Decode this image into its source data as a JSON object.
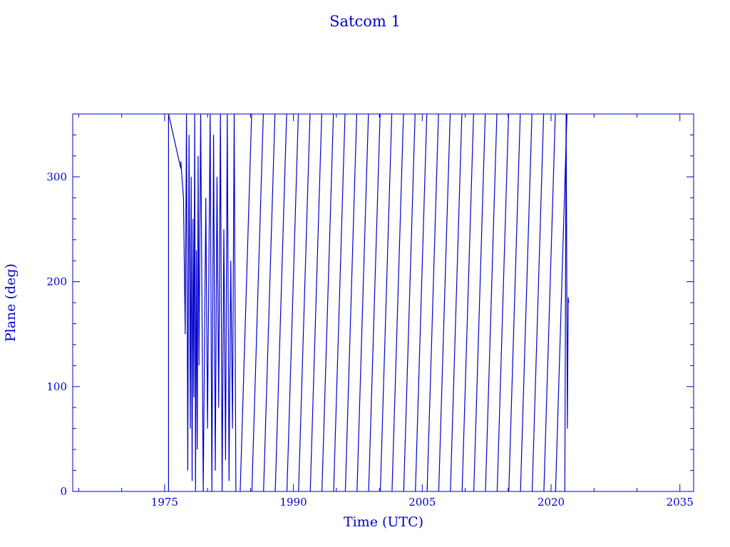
{
  "chart_data": {
    "type": "line",
    "title": "Satcom 1",
    "xlabel": "Time (UTC)",
    "ylabel": "Plane (deg)",
    "xlim": [
      1964.3,
      2036.6
    ],
    "ylim": [
      0,
      360
    ],
    "x_ticks": [
      1975,
      1990,
      2005,
      2020,
      2035
    ],
    "y_ticks": [
      0,
      100,
      200,
      300
    ],
    "grid": false,
    "color": "#0000cc",
    "series": [
      {
        "description_note": "",
        "x": [
          1975.46,
          1975.46,
          1976.88,
          1976.88,
          1977.2,
          1977.4,
          1977.55,
          1977.7,
          1977.85,
          1978.0,
          1978.1,
          1978.2,
          1978.3,
          1978.4,
          1978.5,
          1978.6,
          1978.7,
          1978.8,
          1978.9,
          1979.0,
          1979.2,
          1979.5,
          1979.8,
          1980.0,
          1980.3,
          1980.5,
          1980.7,
          1980.9,
          1981.1,
          1981.3,
          1981.5,
          1981.7,
          1981.9,
          1982.1,
          1982.3,
          1982.5,
          1982.7,
          1982.9,
          1983.1,
          1983.3
        ],
        "y": [
          0,
          360,
          308,
          315,
          280,
          150,
          360,
          20,
          340,
          60,
          300,
          10,
          260,
          90,
          360,
          0,
          230,
          40,
          320,
          120,
          360,
          0,
          280,
          60,
          360,
          0,
          340,
          20,
          300,
          80,
          360,
          0,
          250,
          30,
          360,
          10,
          220,
          60,
          360,
          0
        ]
      }
    ],
    "sawtooth_cycles": {
      "start_year": 1983.8,
      "end_year": 2021.6,
      "period_years": 1.36
    },
    "tail": {
      "x": [
        2021.6,
        2021.75,
        2021.9,
        2022.0,
        2022.06
      ],
      "y": [
        0,
        360,
        60,
        185,
        180
      ]
    }
  }
}
